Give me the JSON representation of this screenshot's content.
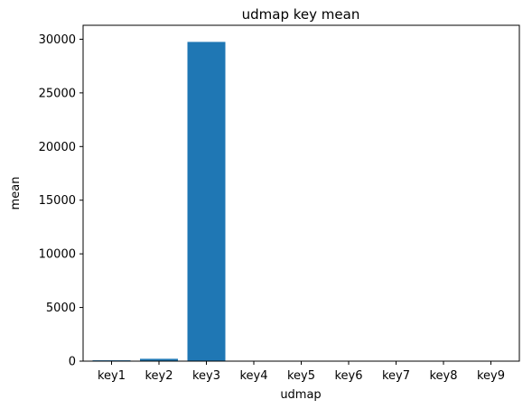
{
  "chart_data": {
    "type": "bar",
    "title": "udmap key mean",
    "xlabel": "udmap",
    "ylabel": "mean",
    "categories": [
      "key1",
      "key2",
      "key3",
      "key4",
      "key5",
      "key6",
      "key7",
      "key8",
      "key9"
    ],
    "values": [
      80,
      220,
      29750,
      5,
      3,
      4,
      2,
      6,
      3
    ],
    "ylim": [
      0,
      31300
    ],
    "yticks": [
      0,
      5000,
      10000,
      15000,
      20000,
      25000,
      30000
    ],
    "grid": false,
    "bar_color": "#1f77b4"
  }
}
